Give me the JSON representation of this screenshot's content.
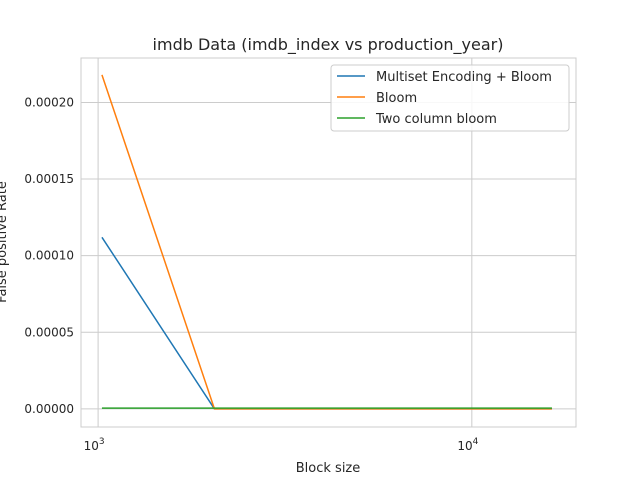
{
  "chart_data": {
    "type": "line",
    "title": "imdb Data (imdb_index vs production_year)",
    "xlabel": "Block size",
    "ylabel": "False positive Rate",
    "xscale": "log",
    "xlim": [
      900,
      19000
    ],
    "ylim": [
      -1.18e-05,
      0.000229
    ],
    "grid": true,
    "legend_position": "top-right",
    "yticks": [
      0,
      5e-05,
      0.0001,
      0.00015,
      0.0002
    ],
    "ytick_labels": [
      "0.00000",
      "0.00005",
      "0.00010",
      "0.00015",
      "0.00020"
    ],
    "xticks": [
      1000,
      10000
    ],
    "xtick_labels": [
      {
        "base": "10",
        "exp": "3"
      },
      {
        "base": "10",
        "exp": "4"
      }
    ],
    "x": [
      1024,
      2048,
      4096,
      8192,
      16384
    ],
    "series": [
      {
        "name": "Multiset Encoding + Bloom",
        "color": "#1f77b4",
        "values": [
          0.000112,
          0,
          0,
          0,
          0
        ]
      },
      {
        "name": "Bloom",
        "color": "#ff7f0e",
        "values": [
          0.000218,
          0,
          0,
          0,
          0
        ]
      },
      {
        "name": "Two column bloom",
        "color": "#2ca02c",
        "values": [
          5e-07,
          5e-07,
          5e-07,
          5e-07,
          5e-07
        ]
      }
    ]
  }
}
